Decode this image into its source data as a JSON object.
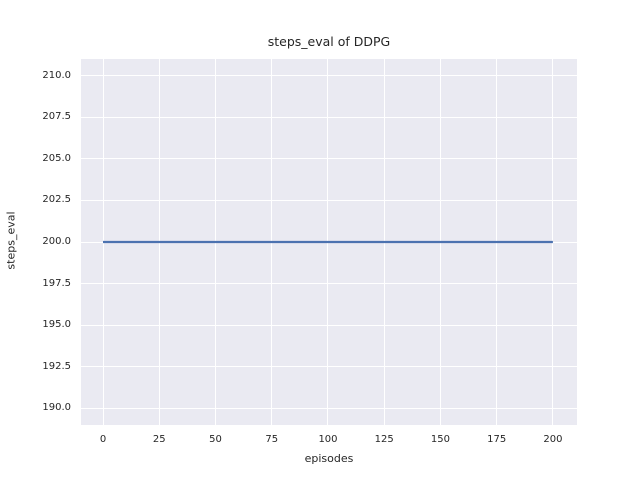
{
  "chart_data": {
    "type": "line",
    "title": "steps_eval of DDPG",
    "xlabel": "episodes",
    "ylabel": "steps_eval",
    "xlim": [
      -9.8,
      210.7
    ],
    "ylim": [
      189.0,
      211.0
    ],
    "x_ticks": [
      0,
      25,
      50,
      75,
      100,
      125,
      150,
      175,
      200
    ],
    "x_tick_labels": [
      "0",
      "25",
      "50",
      "75",
      "100",
      "125",
      "150",
      "175",
      "200"
    ],
    "y_ticks": [
      190.0,
      192.5,
      195.0,
      197.5,
      200.0,
      202.5,
      205.0,
      207.5,
      210.0
    ],
    "y_tick_labels": [
      "190.0",
      "192.5",
      "195.0",
      "197.5",
      "200.0",
      "202.5",
      "205.0",
      "207.5",
      "210.0"
    ],
    "grid": true,
    "legend": "none",
    "plot_background": "#EAEAF2",
    "gridline_color": "#FFFFFF",
    "series": [
      {
        "name": "steps_eval",
        "x": [
          0,
          200
        ],
        "y": [
          200,
          200
        ],
        "color": "#4C72B0",
        "linewidth": 2.2
      }
    ]
  }
}
